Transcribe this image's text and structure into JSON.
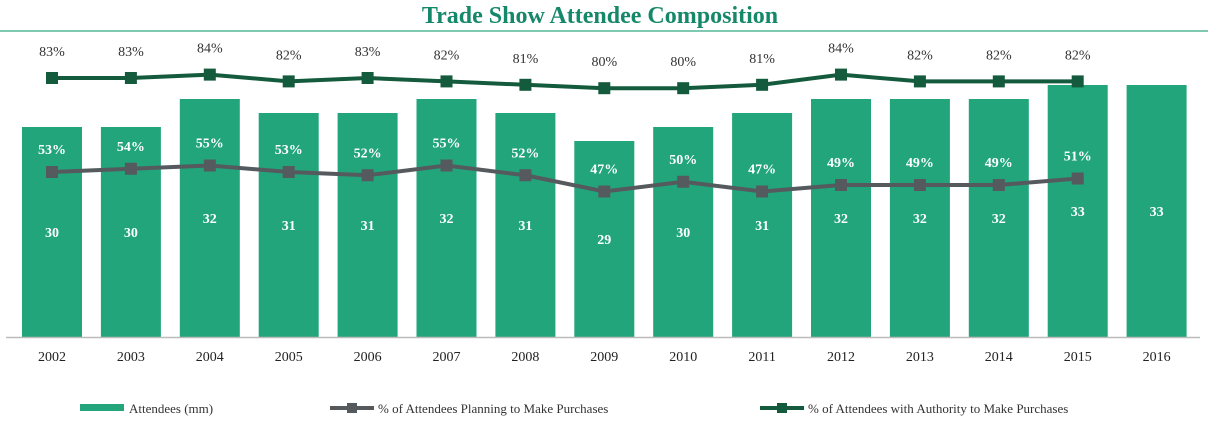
{
  "chart_data": {
    "type": "bar",
    "title": "Trade Show Attendee Composition",
    "categories": [
      "2002",
      "2003",
      "2004",
      "2005",
      "2006",
      "2007",
      "2008",
      "2009",
      "2010",
      "2011",
      "2012",
      "2013",
      "2014",
      "2015",
      "2016"
    ],
    "series": [
      {
        "name": "Attendees (mm)",
        "type": "bar",
        "color": "#22a57a",
        "values": [
          30,
          30,
          32,
          31,
          31,
          32,
          31,
          29,
          30,
          31,
          32,
          32,
          32,
          33,
          33
        ]
      },
      {
        "name": "% of Attendees Planning to Make Purchases",
        "type": "line",
        "color": "#555a5e",
        "values": [
          53,
          54,
          55,
          53,
          52,
          55,
          52,
          47,
          50,
          47,
          49,
          49,
          49,
          51,
          null
        ],
        "labels": [
          "53%",
          "54%",
          "55%",
          "53%",
          "52%",
          "55%",
          "52%",
          "47%",
          "50%",
          "47%",
          "49%",
          "49%",
          "49%",
          "51%",
          ""
        ]
      },
      {
        "name": "% of Attendees with Authority to Make Purchases",
        "type": "line",
        "color": "#145a3c",
        "values": [
          83,
          83,
          84,
          82,
          83,
          82,
          81,
          80,
          80,
          81,
          84,
          82,
          82,
          82,
          null
        ],
        "labels": [
          "83%",
          "83%",
          "84%",
          "82%",
          "83%",
          "82%",
          "81%",
          "80%",
          "80%",
          "81%",
          "84%",
          "82%",
          "82%",
          "82%",
          ""
        ]
      }
    ],
    "ylim": [
      15,
      34
    ],
    "grid": false,
    "legend_position": "bottom",
    "xlabel": "",
    "ylabel": ""
  }
}
